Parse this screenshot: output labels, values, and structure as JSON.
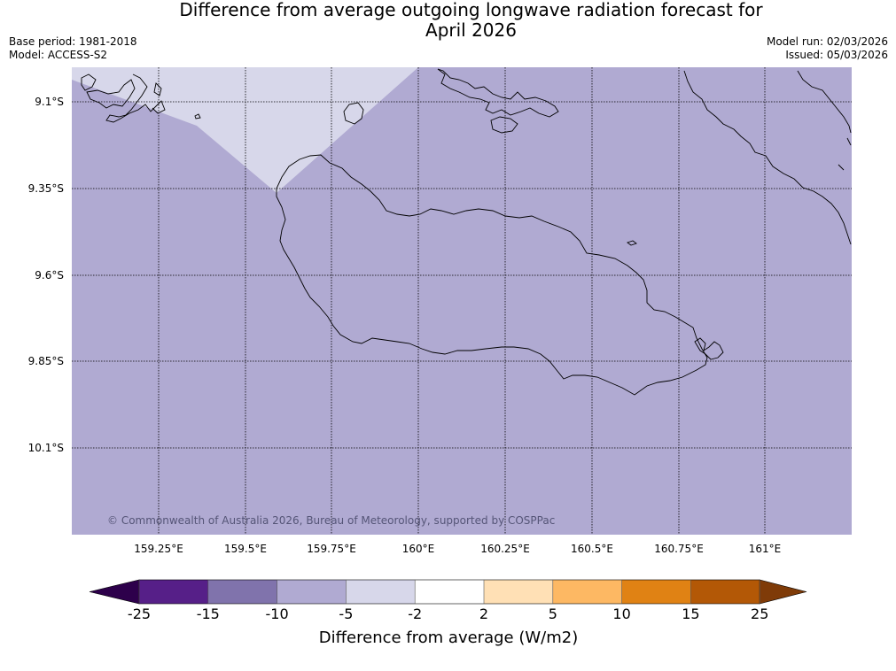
{
  "title": {
    "line1": "Difference from average outgoing longwave radiation forecast for",
    "line2": "April 2026"
  },
  "meta_left": {
    "base_period": "Base period: 1981-2018",
    "model": "Model: ACCESS-S2"
  },
  "meta_right": {
    "model_run": "Model run: 02/03/2026",
    "issued": "Issued: 05/03/2026"
  },
  "map": {
    "lat_ticks": [
      "9.1°S",
      "9.35°S",
      "9.6°S",
      "9.85°S",
      "10.1°S"
    ],
    "lon_ticks": [
      "159.25°E",
      "159.5°E",
      "159.75°E",
      "160°E",
      "160.25°E",
      "160.5°E",
      "160.75°E",
      "161°E"
    ],
    "background_color": "#b0aad2",
    "anomaly_patch_color": "#d7d7ea",
    "copyright": "© Commonwealth of Australia 2026, Bureau of Meteorology, supported by COSPPac"
  },
  "colorbar": {
    "label": "Difference from average (W/m2)",
    "ticks": [
      "-25",
      "-15",
      "-10",
      "-5",
      "-2",
      "2",
      "5",
      "10",
      "15",
      "25"
    ],
    "colors": [
      "#561f88",
      "#8073ac",
      "#b0aad2",
      "#d7d7ea",
      "#ffffff",
      "#ffe0b5",
      "#fdb863",
      "#e08214",
      "#b35806"
    ],
    "under_color": "#2d004b",
    "over_color": "#7f3b08"
  }
}
